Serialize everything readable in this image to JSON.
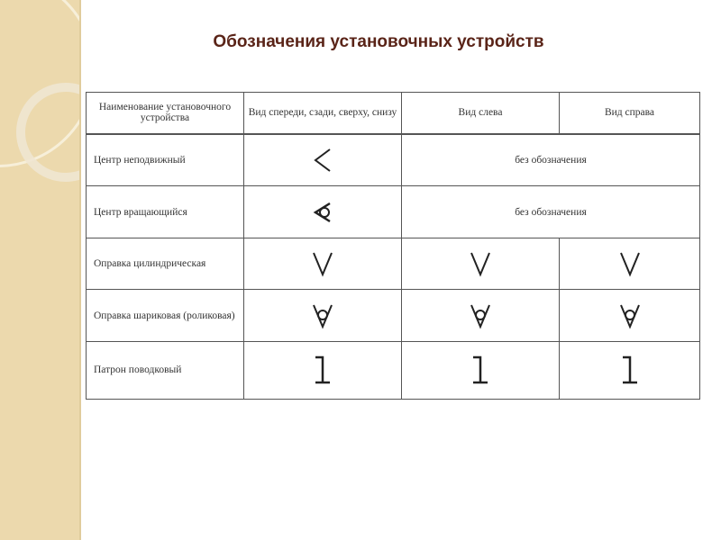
{
  "title": "Обозначения установочных устройств",
  "table": {
    "headers": [
      "Наименование установочного устройства",
      "Вид спереди, сзади, сверху, снизу",
      "Вид слева",
      "Вид справа"
    ],
    "rows": [
      {
        "name": "Центр неподвижный",
        "symbols": [
          "center-fixed"
        ],
        "note": "без обозначения"
      },
      {
        "name": "Центр вращающийся",
        "symbols": [
          "center-rotating"
        ],
        "note": "без обозначения"
      },
      {
        "name": "Оправка цилиндрическая",
        "symbols": [
          "mandrel-v",
          "mandrel-v",
          "mandrel-v"
        ]
      },
      {
        "name": "Оправка шариковая (роликовая)",
        "symbols": [
          "mandrel-ball",
          "mandrel-ball",
          "mandrel-ball"
        ]
      },
      {
        "name": "Патрон поводковый",
        "symbols": [
          "driver-chuck",
          "driver-chuck",
          "driver-chuck"
        ]
      }
    ]
  }
}
